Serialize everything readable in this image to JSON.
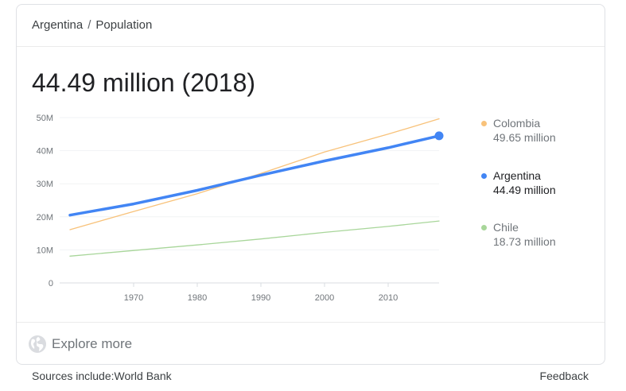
{
  "breadcrumb": {
    "parent": "Argentina",
    "separator": "/",
    "current": "Population"
  },
  "headline": "44.49 million (2018)",
  "legend": [
    {
      "name": "Colombia",
      "value": "49.65 million",
      "color": "#f8c27a",
      "state": "dim"
    },
    {
      "name": "Argentina",
      "value": "44.49 million",
      "color": "#4285f4",
      "state": "active"
    },
    {
      "name": "Chile",
      "value": "18.73 million",
      "color": "#a8d69a",
      "state": "dim"
    }
  ],
  "footer": {
    "explore_label": "Explore more",
    "explore_icon": "globe-icon"
  },
  "sources": "Sources include:World Bank",
  "feedback": "Feedback",
  "chart_data": {
    "type": "line",
    "xlim": [
      1960,
      2018
    ],
    "ylim": [
      0,
      50
    ],
    "xticks": [
      1970,
      1980,
      1990,
      2000,
      2010
    ],
    "xtick_labels": [
      "1970",
      "1980",
      "1990",
      "2000",
      "2010"
    ],
    "yticks": [
      0,
      10,
      20,
      30,
      40,
      50
    ],
    "ytick_labels": [
      "0",
      "10M",
      "20M",
      "30M",
      "40M",
      "50M"
    ],
    "grid": true,
    "legend_position": "right",
    "series": [
      {
        "name": "Colombia",
        "color": "#f8c27a",
        "x": [
          1960,
          1970,
          1980,
          1990,
          2000,
          2010,
          2018
        ],
        "y": [
          16.1,
          21.6,
          27.0,
          33.1,
          39.6,
          45.0,
          49.65
        ]
      },
      {
        "name": "Argentina",
        "color": "#4285f4",
        "highlight_last": true,
        "x": [
          1960,
          1970,
          1980,
          1990,
          2000,
          2010,
          2018
        ],
        "y": [
          20.5,
          23.9,
          28.0,
          32.6,
          36.9,
          40.9,
          44.49
        ]
      },
      {
        "name": "Chile",
        "color": "#a8d69a",
        "x": [
          1960,
          1970,
          1980,
          1990,
          2000,
          2010,
          2018
        ],
        "y": [
          8.1,
          9.8,
          11.5,
          13.3,
          15.3,
          17.1,
          18.73
        ]
      }
    ]
  }
}
